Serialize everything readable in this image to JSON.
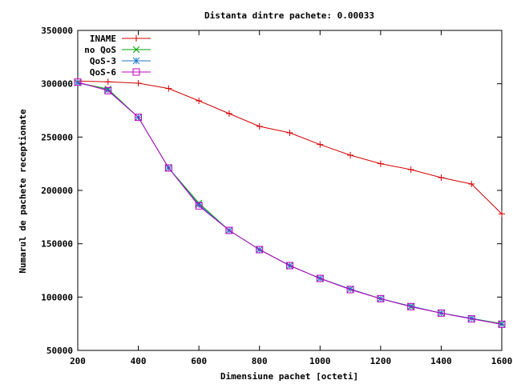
{
  "chart_data": {
    "type": "line",
    "title": "Distanta dintre pachete: 0.00033",
    "xlabel": "Dimensiune pachet [octeti]",
    "ylabel": "Numarul de pachete receptionate",
    "xlim": [
      200,
      1600
    ],
    "ylim": [
      50000,
      350000
    ],
    "xticks": [
      200,
      400,
      600,
      800,
      1000,
      1200,
      1400,
      1600
    ],
    "yticks": [
      50000,
      100000,
      150000,
      200000,
      250000,
      300000,
      350000
    ],
    "grid": false,
    "legend": "top-left",
    "x": [
      200,
      300,
      400,
      500,
      600,
      700,
      800,
      900,
      1000,
      1100,
      1200,
      1300,
      1400,
      1500,
      1600
    ],
    "series": [
      {
        "name": "INAME",
        "color": "#d40000",
        "marker": "plus",
        "values": [
          302500,
          301800,
          300500,
          295500,
          284000,
          272000,
          260000,
          254000,
          243000,
          233000,
          225000,
          219500,
          212000,
          206000,
          178000
        ]
      },
      {
        "name": "no QoS",
        "color": "#00a000",
        "marker": "x",
        "values": [
          301000,
          295000,
          268500,
          221000,
          188000,
          162500,
          144500,
          129500,
          117500,
          107500,
          98500,
          91000,
          85000,
          80000,
          75000
        ]
      },
      {
        "name": "QoS-3",
        "color": "#1f78c8",
        "marker": "star",
        "values": [
          301000,
          294000,
          268500,
          221000,
          186500,
          162500,
          144500,
          129500,
          117500,
          107500,
          98500,
          91500,
          85000,
          80000,
          74500
        ]
      },
      {
        "name": "QoS-6",
        "color": "#c000c0",
        "marker": "box",
        "values": [
          301500,
          293500,
          268500,
          221000,
          185500,
          162500,
          144500,
          129500,
          117500,
          107000,
          98500,
          91000,
          85000,
          79500,
          74500
        ]
      }
    ]
  }
}
